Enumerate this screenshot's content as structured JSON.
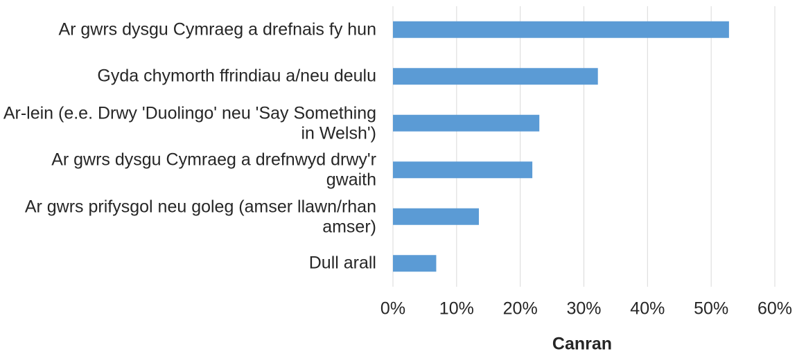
{
  "chart_data": {
    "type": "bar",
    "orientation": "horizontal",
    "x_axis_label": "Canran",
    "categories": [
      "Ar gwrs dysgu Cymraeg a drefnais fy hun",
      "Gyda chymorth ffrindiau a/neu deulu",
      "Ar-lein (e.e. Drwy 'Duolingo' neu 'Say Something in Welsh')",
      "Ar gwrs dysgu Cymraeg a drefnwyd drwy'r gwaith",
      "Ar gwrs prifysgol neu goleg (amser llawn/rhan amser)",
      "Dull arall"
    ],
    "values": [
      52.8,
      32.2,
      23.0,
      21.9,
      13.5,
      6.8
    ],
    "color": "#5b9bd5",
    "xlim": [
      0,
      60
    ],
    "xticks": [
      {
        "value": 0,
        "label": "0%"
      },
      {
        "value": 10,
        "label": "10%"
      },
      {
        "value": 20,
        "label": "20%"
      },
      {
        "value": 30,
        "label": "30%"
      },
      {
        "value": 40,
        "label": "40%"
      },
      {
        "value": 50,
        "label": "50%"
      },
      {
        "value": 60,
        "label": "60%"
      }
    ],
    "grid": true
  }
}
